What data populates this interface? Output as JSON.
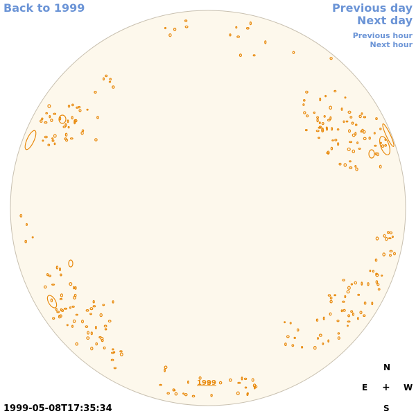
{
  "nav": {
    "back": "Back to 1999",
    "previous_day": "Previous day",
    "next_day": "Next day",
    "previous_hour": "Previous hour",
    "next_hour": "Next hour"
  },
  "disk": {
    "year_link": "1999"
  },
  "timestamp": "1999-05-08T17:35:34",
  "compass": {
    "north": "N",
    "south": "S",
    "east": "E",
    "west": "W",
    "center": "+"
  },
  "colors": {
    "link": "#6b94d6",
    "disk_fill": "#fdf8ec",
    "disk_border": "#c8c0b0",
    "contour": "#e8890c",
    "year_link": "#e8890c"
  }
}
